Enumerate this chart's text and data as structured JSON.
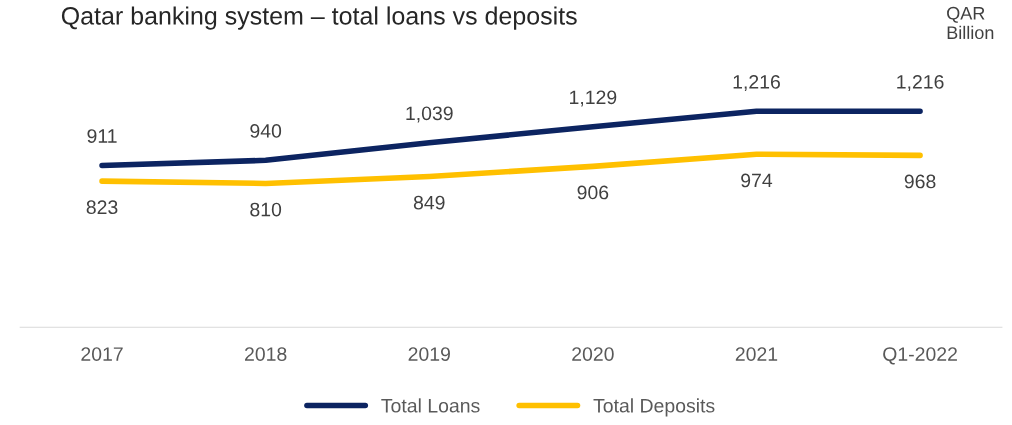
{
  "chart_data": {
    "type": "line",
    "title": "Qatar banking system – total loans vs deposits",
    "categories": [
      "2017",
      "2018",
      "2019",
      "2020",
      "2021",
      "Q1-2022"
    ],
    "series": [
      {
        "name": "Total Loans",
        "color": "#0c2461",
        "values": [
          911,
          940,
          1039,
          1129,
          1216,
          1216
        ],
        "value_labels": [
          "911",
          "940",
          "1,039",
          "1,129",
          "1,216",
          "1,216"
        ]
      },
      {
        "name": "Total Deposits",
        "color": "#ffc000",
        "values": [
          823,
          810,
          849,
          906,
          974,
          968
        ],
        "value_labels": [
          "823",
          "810",
          "849",
          "906",
          "974",
          "968"
        ]
      }
    ],
    "tick_labels": "x",
    "grid": false,
    "legend": "bottom",
    "marker": "none",
    "line_style": "solid",
    "annotations": [
      "QAR Billion"
    ]
  }
}
